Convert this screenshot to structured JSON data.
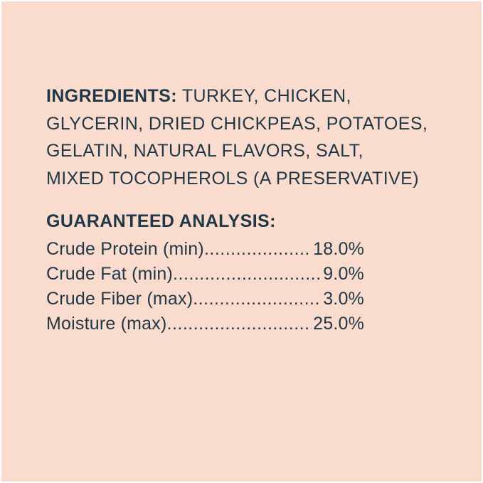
{
  "page": {
    "background_color": "#fadcce",
    "text_color": "#1f3747"
  },
  "ingredients": {
    "heading": "INGREDIENTS:",
    "lines": [
      "TURKEY, CHICKEN,",
      "GLYCERIN, DRIED CHICKPEAS, POTATOES,",
      "GELATIN, NATURAL FLAVORS, SALT,",
      "MIXED TOCOPHEROLS (A PRESERVATIVE)"
    ]
  },
  "guaranteed_analysis": {
    "heading": "GUARANTEED ANALYSIS:",
    "leader_dots": "................................................................................",
    "rows": [
      {
        "label": "Crude Protein (min)",
        "value": "18.0%"
      },
      {
        "label": "Crude Fat (min)",
        "value": "9.0%"
      },
      {
        "label": "Crude Fiber (max)",
        "value": "3.0%"
      },
      {
        "label": "Moisture (max)",
        "value": "25.0%"
      }
    ]
  }
}
